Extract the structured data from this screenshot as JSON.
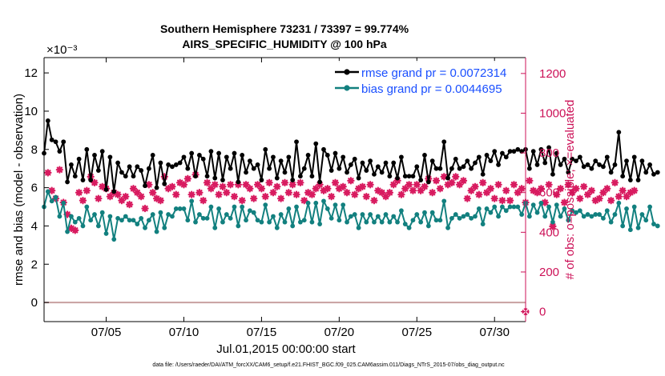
{
  "chart_data": {
    "type": "line",
    "title_line1": "Southern Hemisphere 73231 / 73397 = 99.774%",
    "title_line2": "AIRS_SPECIFIC_HUMIDITY @ 100 hPa",
    "exponent_label": "×10⁻³",
    "ylabel": "rmse and bias (model - observation)",
    "ylabel_right": "# of obs: o=possible; ×=evaluated",
    "xlabel": "Jul.01,2015 00:00:00 start",
    "footer": "data file: /Users/raeder/DAI/ATM_forcXX/CAM6_setup/f.e21.FHIST_BGC.f09_025.CAM6assim.011/Diags_NTrS_2015-07/obs_diag_output.nc",
    "xlim": [
      1,
      32
    ],
    "ylim": [
      -1,
      12.8
    ],
    "ylim_right": [
      -50,
      1280
    ],
    "x_ticks": [
      5,
      10,
      15,
      20,
      25,
      30
    ],
    "x_tick_labels": [
      "07/05",
      "07/10",
      "07/15",
      "07/20",
      "07/25",
      "07/30"
    ],
    "y_ticks": [
      0,
      2,
      4,
      6,
      8,
      10,
      12
    ],
    "y_ticks_right": [
      0,
      200,
      400,
      600,
      800,
      1000,
      1200
    ],
    "legend_position": "top-right",
    "colors": {
      "rmse": "#000000",
      "bias": "#12807f",
      "obs": "#d81b60",
      "axis": "#000000",
      "right_axis": "#cc1157",
      "legend_text": "#1a4fff",
      "zero_line": "#c8a0a0"
    },
    "x_start": 1.0,
    "x_step": 0.25,
    "series": [
      {
        "name": "rmse grand pr = 0.0072314",
        "values": [
          7.8,
          9.5,
          8.5,
          8.4,
          7.9,
          8.4,
          6.3,
          7.2,
          6.6,
          7.5,
          6.4,
          8.0,
          6.4,
          7.7,
          6.9,
          7.9,
          5.9,
          7.6,
          5.8,
          7.3,
          6.8,
          6.6,
          7.1,
          6.6,
          7.1,
          6.9,
          6.1,
          7.0,
          7.7,
          6.0,
          7.3,
          6.2,
          7.2,
          7.1,
          7.2,
          7.3,
          7.6,
          7.0,
          7.8,
          6.6,
          7.7,
          7.5,
          6.6,
          7.9,
          6.5,
          7.8,
          6.4,
          7.6,
          7.0,
          7.8,
          6.3,
          7.7,
          6.8,
          7.4,
          7.0,
          7.2,
          6.4,
          8.0,
          7.0,
          7.6,
          6.5,
          7.4,
          6.8,
          7.6,
          6.4,
          8.4,
          6.6,
          7.0,
          7.7,
          6.6,
          8.3,
          6.3,
          8.0,
          7.7,
          6.9,
          7.8,
          7.0,
          7.6,
          6.8,
          7.2,
          7.5,
          6.5,
          7.3,
          6.9,
          7.4,
          6.7,
          7.1,
          6.8,
          7.3,
          6.6,
          7.3,
          6.5,
          7.6,
          6.6,
          6.6,
          6.6,
          7.1,
          6.4,
          7.7,
          6.3,
          7.4,
          7.0,
          7.0,
          8.4,
          6.5,
          7.0,
          7.5,
          7.0,
          7.1,
          7.4,
          7.0,
          7.3,
          7.6,
          6.7,
          7.7,
          7.4,
          7.9,
          7.2,
          7.8,
          7.6,
          7.9,
          7.9,
          8.0,
          7.9,
          8.0,
          7.0,
          7.9,
          7.2,
          8.0,
          7.3,
          8.1,
          6.7,
          7.8,
          7.2,
          7.5,
          6.8,
          7.5,
          7.4,
          7.6,
          7.1,
          7.2,
          7.0,
          7.4,
          7.2,
          7.1,
          7.6,
          6.8,
          7.2,
          8.9,
          6.6,
          7.4,
          6.4,
          7.6,
          6.4,
          7.4,
          6.8,
          7.2,
          6.7,
          6.8
        ]
      },
      {
        "name": "bias grand pr = 0.0044695",
        "values": [
          5.0,
          5.8,
          5.3,
          5.5,
          4.5,
          5.2,
          3.7,
          4.5,
          4.2,
          4.4,
          4.0,
          5.0,
          4.3,
          4.6,
          4.0,
          4.7,
          3.6,
          4.5,
          3.3,
          4.4,
          4.3,
          4.5,
          4.3,
          4.3,
          4.1,
          4.4,
          3.9,
          4.3,
          4.6,
          3.7,
          4.7,
          3.9,
          4.6,
          4.5,
          4.9,
          4.9,
          4.9,
          4.3,
          5.3,
          4.2,
          4.6,
          4.4,
          4.4,
          5.0,
          3.9,
          4.9,
          4.2,
          4.6,
          4.4,
          5.0,
          4.0,
          5.0,
          4.3,
          4.8,
          4.7,
          4.3,
          4.2,
          5.1,
          4.2,
          4.5,
          3.9,
          4.6,
          4.2,
          4.9,
          4.0,
          5.0,
          4.2,
          4.3,
          5.2,
          4.2,
          5.2,
          4.1,
          5.3,
          4.9,
          4.4,
          5.1,
          4.3,
          5.1,
          4.2,
          4.5,
          4.6,
          3.9,
          4.6,
          4.2,
          4.6,
          4.2,
          4.5,
          4.2,
          4.6,
          4.2,
          4.5,
          4.2,
          4.8,
          4.1,
          3.9,
          4.3,
          4.6,
          4.2,
          4.7,
          4.0,
          4.7,
          4.3,
          4.3,
          5.3,
          3.9,
          4.4,
          4.6,
          4.4,
          4.5,
          4.6,
          4.4,
          4.5,
          4.9,
          4.1,
          4.9,
          4.7,
          5.0,
          4.5,
          5.0,
          4.8,
          5.0,
          5.0,
          5.0,
          4.6,
          5.2,
          4.5,
          5.1,
          4.7,
          5.2,
          4.5,
          5.0,
          4.2,
          5.1,
          4.5,
          4.9,
          4.3,
          4.8,
          4.7,
          4.8,
          4.5,
          4.6,
          4.5,
          4.6,
          4.6,
          4.4,
          4.8,
          4.2,
          4.6,
          5.2,
          4.0,
          4.9,
          3.8,
          5.0,
          3.9,
          4.6,
          4.3,
          5.0,
          4.1,
          4.0
        ]
      }
    ],
    "obs_evaluated": {
      "start_x": 1.25,
      "step": 0.25,
      "values": [
        700,
        610,
        570,
        715,
        550,
        490,
        420,
        410,
        600,
        560,
        610,
        680,
        650,
        570,
        630,
        620,
        580,
        600,
        590,
        560,
        580,
        540,
        620,
        600,
        580,
        520,
        640,
        600,
        570,
        560,
        680,
        620,
        630,
        590,
        650,
        640,
        670,
        590,
        690,
        600,
        560,
        650,
        620,
        640,
        590,
        630,
        600,
        640,
        580,
        640,
        560,
        640,
        620,
        570,
        640,
        620,
        580,
        650,
        600,
        630,
        570,
        650,
        600,
        640,
        590,
        650,
        560,
        600,
        590,
        620,
        640,
        610,
        620,
        580,
        650,
        620,
        630,
        600,
        660,
        590,
        620,
        630,
        580,
        640,
        560,
        610,
        600,
        580,
        600,
        640,
        660,
        590,
        620,
        640,
        610,
        640,
        610,
        630,
        670,
        600,
        660,
        620,
        680,
        640,
        650,
        680,
        640,
        660,
        570,
        610,
        630,
        590,
        650,
        600,
        620,
        570,
        640,
        560,
        610,
        560,
        640,
        600,
        620,
        550,
        660,
        610,
        600,
        620,
        550,
        640,
        430,
        590,
        620,
        550,
        640,
        600,
        620,
        570,
        630,
        590,
        610,
        560,
        570,
        600,
        620,
        560,
        650,
        580,
        610,
        580,
        600,
        610
      ]
    },
    "obs_possible": {
      "x": 32,
      "value": 0
    }
  }
}
